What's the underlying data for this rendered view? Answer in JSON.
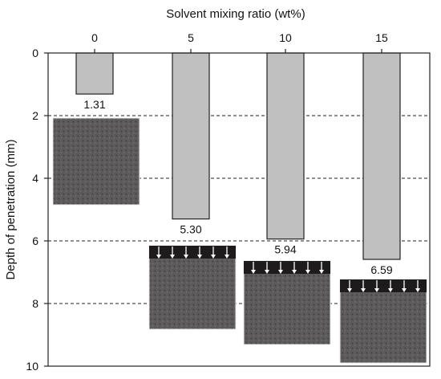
{
  "chart_data": {
    "type": "bar",
    "title": "",
    "xlabel": "Solvent mixing ratio (wt%)",
    "ylabel": "Depth of penetration (mm)",
    "categories": [
      "0",
      "5",
      "10",
      "15"
    ],
    "values": [
      1.31,
      5.3,
      5.94,
      6.59
    ],
    "value_labels": [
      "1.31",
      "5.30",
      "5.94",
      "6.59"
    ],
    "ylim": [
      0,
      10
    ],
    "y_ticks": [
      0,
      2,
      4,
      6,
      8,
      10
    ],
    "y_tick_labels": [
      "0",
      "2",
      "4",
      "6",
      "8",
      "10"
    ],
    "y_axis_inverted": true,
    "x_axis_position": "top",
    "grid": "horizontal dashed",
    "bar_color": "#c0c0c0",
    "photo_insets": "photograph of sample cross-section under each bar"
  }
}
